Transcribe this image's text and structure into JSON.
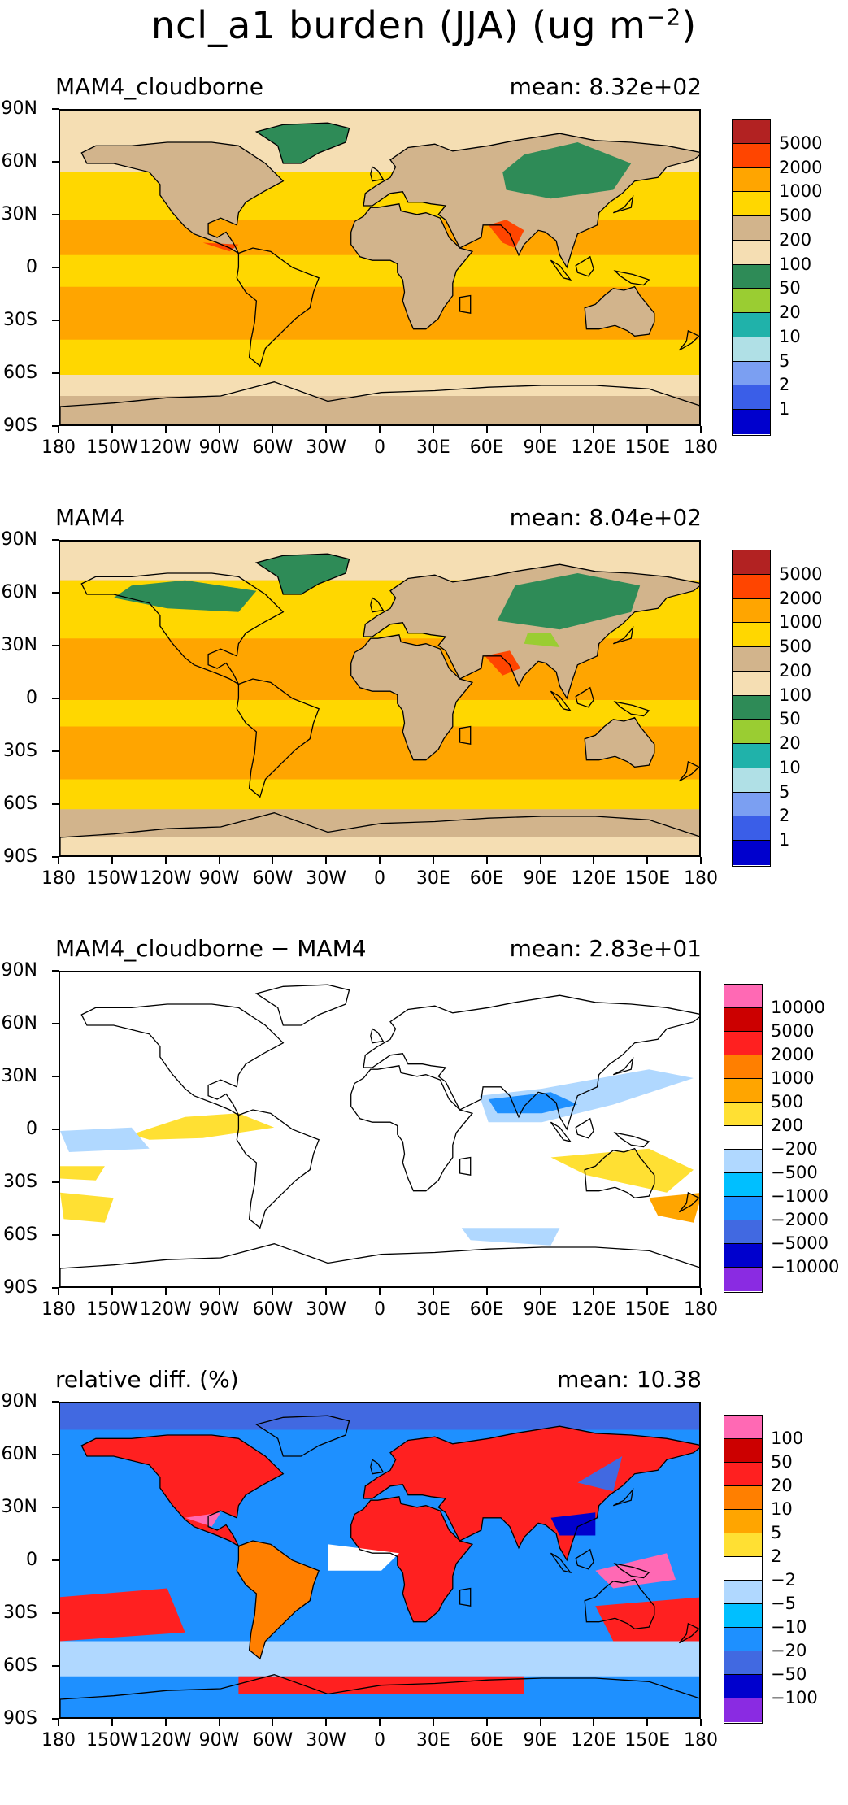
{
  "figure_title": "ncl_a1 burden (JJA) (ug m",
  "figure_title_sup": "−2",
  "figure_title_end": ")",
  "panels": [
    {
      "name": "MAM4_cloudborne",
      "mean": "mean: 8.32e+02",
      "levels": [
        "5000",
        "2000",
        "1000",
        "500",
        "200",
        "100",
        "50",
        "20",
        "10",
        "5",
        "2",
        "1"
      ],
      "colors": [
        "#b22222",
        "#ff4500",
        "#ffa500",
        "#ffd700",
        "#d2b48c",
        "#f5deb3",
        "#2e8b57",
        "#9acd32",
        "#20b2aa",
        "#b0e0e6",
        "#7b9ff2",
        "#3a5ee8",
        "#0000cd"
      ]
    },
    {
      "name": "MAM4",
      "mean": "mean: 8.04e+02",
      "levels": [
        "5000",
        "2000",
        "1000",
        "500",
        "200",
        "100",
        "50",
        "20",
        "10",
        "5",
        "2",
        "1"
      ],
      "colors": [
        "#b22222",
        "#ff4500",
        "#ffa500",
        "#ffd700",
        "#d2b48c",
        "#f5deb3",
        "#2e8b57",
        "#9acd32",
        "#20b2aa",
        "#b0e0e6",
        "#7b9ff2",
        "#3a5ee8",
        "#0000cd"
      ]
    },
    {
      "name": "MAM4_cloudborne − MAM4",
      "mean": "mean: 2.83e+01",
      "levels": [
        "10000",
        "5000",
        "2000",
        "1000",
        "500",
        "200",
        "−200",
        "−500",
        "−1000",
        "−2000",
        "−5000",
        "−10000"
      ],
      "colors": [
        "#ff69b4",
        "#cc0000",
        "#ff2020",
        "#ff7f00",
        "#ffa500",
        "#ffe033",
        "#ffffff",
        "#b0d8ff",
        "#00bfff",
        "#1e90ff",
        "#4169e1",
        "#0000cd",
        "#8a2be2"
      ]
    },
    {
      "name": "relative diff. (%)",
      "mean": "mean: 10.38",
      "levels": [
        "100",
        "50",
        "20",
        "10",
        "5",
        "2",
        "−2",
        "−5",
        "−10",
        "−20",
        "−50",
        "−100"
      ],
      "colors": [
        "#ff69b4",
        "#cc0000",
        "#ff2020",
        "#ff7f00",
        "#ffa500",
        "#ffe033",
        "#ffffff",
        "#b0d8ff",
        "#00bfff",
        "#1e90ff",
        "#4169e1",
        "#0000cd",
        "#8a2be2"
      ]
    }
  ],
  "lat_labels": [
    "90N",
    "60N",
    "30N",
    "0",
    "30S",
    "60S",
    "90S"
  ],
  "lon_labels": [
    "180",
    "150W",
    "120W",
    "90W",
    "60W",
    "30W",
    "0",
    "30E",
    "60E",
    "90E",
    "120E",
    "150E",
    "180"
  ],
  "chart_data": [
    {
      "type": "heatmap",
      "title": "MAM4_cloudborne",
      "annotation": "mean: 8.32e+02",
      "xlim": [
        -180,
        180
      ],
      "ylim": [
        -90,
        90
      ],
      "levels": [
        1,
        2,
        5,
        10,
        20,
        50,
        100,
        200,
        500,
        1000,
        2000,
        5000
      ]
    },
    {
      "type": "heatmap",
      "title": "MAM4",
      "annotation": "mean: 8.04e+02",
      "xlim": [
        -180,
        180
      ],
      "ylim": [
        -90,
        90
      ],
      "levels": [
        1,
        2,
        5,
        10,
        20,
        50,
        100,
        200,
        500,
        1000,
        2000,
        5000
      ]
    },
    {
      "type": "heatmap",
      "title": "MAM4_cloudborne − MAM4",
      "annotation": "mean: 2.83e+01",
      "xlim": [
        -180,
        180
      ],
      "ylim": [
        -90,
        90
      ],
      "levels": [
        -10000,
        -5000,
        -2000,
        -1000,
        -500,
        -200,
        200,
        500,
        1000,
        2000,
        5000,
        10000
      ]
    },
    {
      "type": "heatmap",
      "title": "relative diff. (%)",
      "annotation": "mean: 10.38",
      "xlim": [
        -180,
        180
      ],
      "ylim": [
        -90,
        90
      ],
      "levels": [
        -100,
        -50,
        -20,
        -10,
        -5,
        -2,
        2,
        5,
        10,
        20,
        50,
        100
      ]
    }
  ]
}
